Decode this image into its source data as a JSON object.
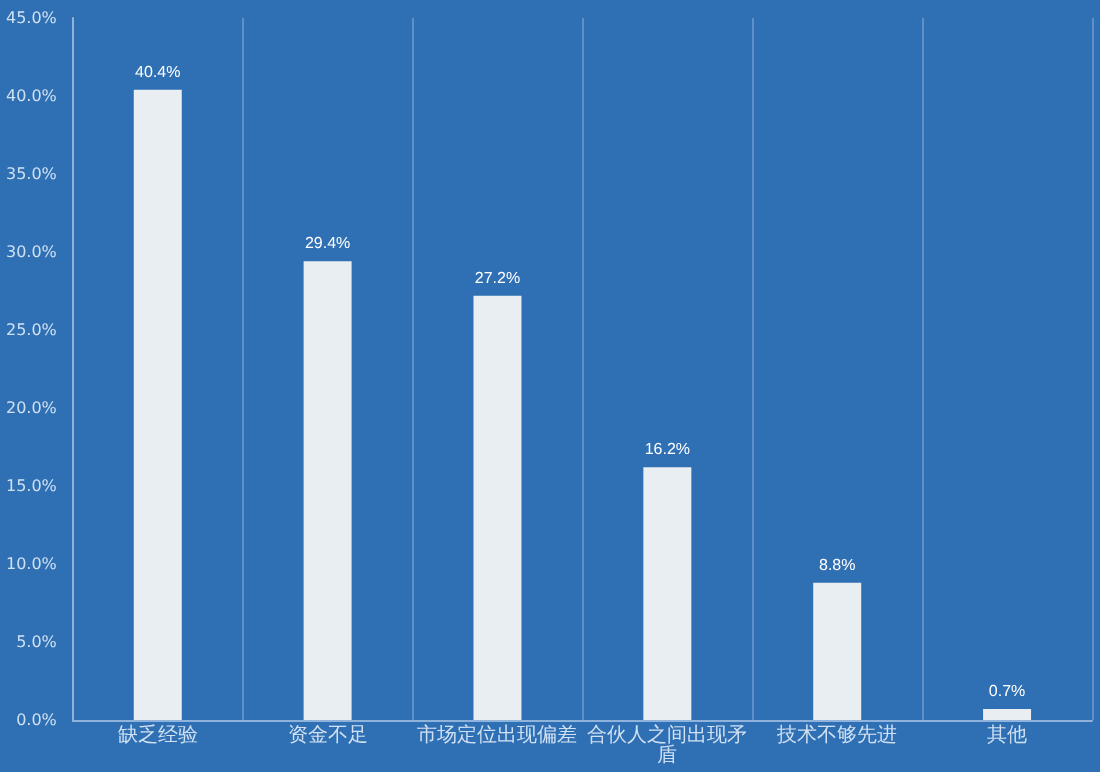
{
  "chart_data": {
    "type": "bar",
    "categories": [
      "缺乏经验",
      "资金不足",
      "市场定位出现偏差",
      "合伙人之间出现矛盾",
      "技术不够先进",
      "其他"
    ],
    "values": [
      40.4,
      29.4,
      27.2,
      16.2,
      8.8,
      0.7
    ],
    "color": "#e9eef3",
    "value_labels": [
      "40.4%",
      "29.4%",
      "27.2%",
      "16.2%",
      "8.8%",
      "0.7%"
    ],
    "ylim": [
      0,
      45
    ],
    "yticks": [
      {
        "value": 0,
        "label": "0.0%"
      },
      {
        "value": 5,
        "label": "5.0%"
      },
      {
        "value": 10,
        "label": "10.0%"
      },
      {
        "value": 15,
        "label": "15.0%"
      },
      {
        "value": 20,
        "label": "20.0%"
      },
      {
        "value": 25,
        "label": "25.0%"
      },
      {
        "value": 30,
        "label": "30.0%"
      },
      {
        "value": 35,
        "label": "35.0%"
      },
      {
        "value": 40,
        "label": "40.0%"
      },
      {
        "value": 45,
        "label": "45.0%"
      }
    ],
    "grid": "x"
  }
}
